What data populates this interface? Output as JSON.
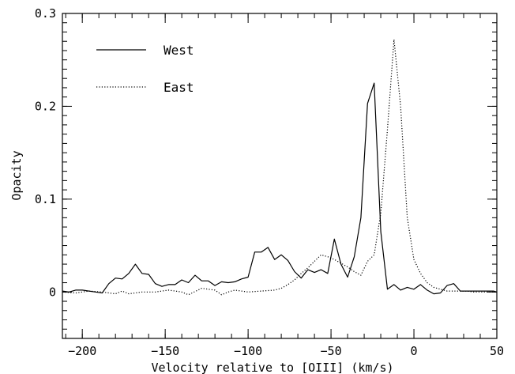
{
  "chart_data": {
    "type": "line",
    "xlabel": "Velocity relative to [OIII]  (km/s)",
    "ylabel": "Opacity",
    "xlim": [
      -212,
      50
    ],
    "ylim": [
      -0.05,
      0.3
    ],
    "x_ticks": [
      -200,
      -150,
      -100,
      -50,
      0,
      50
    ],
    "x_tick_labels": [
      "−200",
      "−150",
      "−100",
      "−50",
      "0",
      "50"
    ],
    "y_ticks": [
      0,
      0.1,
      0.2,
      0.3
    ],
    "y_tick_labels": [
      "0",
      "0.1",
      "0.2",
      "0.3"
    ],
    "x_minor_step": 10,
    "y_minor_step": 0.01,
    "legend_position": "top-left",
    "series": [
      {
        "name": "West",
        "style": "solid",
        "x": [
          -212,
          -208,
          -204,
          -200,
          -196,
          -192,
          -188,
          -184,
          -180,
          -176,
          -172,
          -168,
          -164,
          -160,
          -156,
          -152,
          -148,
          -144,
          -140,
          -136,
          -132,
          -128,
          -124,
          -120,
          -116,
          -112,
          -108,
          -104,
          -100,
          -96,
          -92,
          -88,
          -84,
          -80,
          -76,
          -72,
          -68,
          -64,
          -60,
          -56,
          -52,
          -48,
          -44,
          -40,
          -36,
          -32,
          -28,
          -24,
          -20,
          -16,
          -12,
          -8,
          -4,
          0,
          4,
          8,
          12,
          16,
          20,
          24,
          28,
          32,
          36,
          40,
          44,
          48,
          50
        ],
        "y": [
          0.001,
          0,
          0.002,
          0.002,
          0.001,
          0,
          -0.001,
          0.009,
          0.015,
          0.014,
          0.02,
          0.03,
          0.02,
          0.019,
          0.009,
          0.006,
          0.008,
          0.008,
          0.013,
          0.01,
          0.018,
          0.012,
          0.012,
          0.007,
          0.011,
          0.01,
          0.011,
          0.014,
          0.016,
          0.043,
          0.043,
          0.048,
          0.035,
          0.04,
          0.034,
          0.022,
          0.015,
          0.024,
          0.021,
          0.024,
          0.02,
          0.057,
          0.03,
          0.016,
          0.038,
          0.08,
          0.203,
          0.225,
          0.065,
          0.003,
          0.008,
          0.002,
          0.005,
          0.003,
          0.008,
          0.002,
          -0.002,
          -0.001,
          0.007,
          0.009,
          0.001,
          0.001,
          0.001,
          0.001,
          0.001,
          0.001,
          0
        ]
      },
      {
        "name": "East",
        "style": "dotted",
        "x": [
          -212,
          -204,
          -196,
          -188,
          -180,
          -176,
          -172,
          -164,
          -156,
          -148,
          -140,
          -136,
          -128,
          -120,
          -116,
          -112,
          -108,
          -100,
          -92,
          -84,
          -80,
          -76,
          -72,
          -68,
          -64,
          -60,
          -56,
          -52,
          -48,
          -44,
          -40,
          -36,
          -32,
          -28,
          -24,
          -20,
          -16,
          -12,
          -8,
          -4,
          0,
          4,
          8,
          12,
          16,
          20,
          24,
          28,
          32,
          36,
          40,
          44,
          48,
          50
        ],
        "y": [
          0,
          -0.001,
          0.001,
          0,
          -0.002,
          0.001,
          -0.002,
          0,
          0,
          0.002,
          0,
          -0.003,
          0.004,
          0.002,
          -0.003,
          0,
          0.002,
          0,
          0.001,
          0.002,
          0.004,
          0.008,
          0.013,
          0.02,
          0.026,
          0.033,
          0.04,
          0.038,
          0.035,
          0.031,
          0.027,
          0.022,
          0.018,
          0.033,
          0.04,
          0.085,
          0.175,
          0.272,
          0.2,
          0.08,
          0.035,
          0.02,
          0.01,
          0.005,
          0.003,
          0.001,
          0.001,
          0.001,
          0.001,
          0,
          0,
          0,
          0,
          0
        ]
      }
    ]
  }
}
